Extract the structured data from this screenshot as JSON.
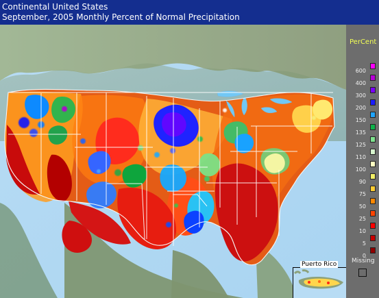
{
  "header": {
    "line1": "Continental United States",
    "line2": "September, 2005 Monthly Percent of Normal Precipitation"
  },
  "legend": {
    "title": "PerCent",
    "missing_label": "Missing",
    "items": [
      {
        "label": "600",
        "color": "#ff00ff"
      },
      {
        "label": "400",
        "color": "#b800d8"
      },
      {
        "label": "300",
        "color": "#7a00ff"
      },
      {
        "label": "200",
        "color": "#1a1cff"
      },
      {
        "label": "150",
        "color": "#1fa4ff"
      },
      {
        "label": "135",
        "color": "#0fb14b"
      },
      {
        "label": "125",
        "color": "#7ee18d"
      },
      {
        "label": "110",
        "color": "#d8f5cf"
      },
      {
        "label": "100",
        "color": "#ffffc2"
      },
      {
        "label": "90",
        "color": "#f1ee66"
      },
      {
        "label": "75",
        "color": "#ffcc33"
      },
      {
        "label": "50",
        "color": "#ff8800"
      },
      {
        "label": "25",
        "color": "#ff4400"
      },
      {
        "label": "10",
        "color": "#ff0000"
      },
      {
        "label": "5",
        "color": "#c80000"
      },
      {
        "label": "0",
        "color": "#8f0000"
      }
    ]
  },
  "inset": {
    "label": "Puerto Rico"
  }
}
